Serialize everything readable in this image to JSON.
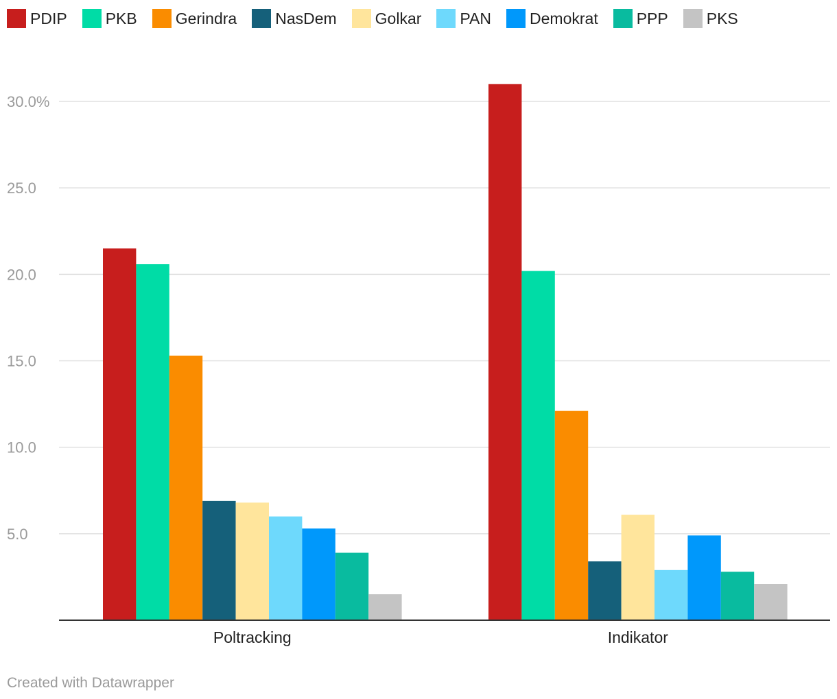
{
  "chart_data": {
    "type": "bar",
    "categories": [
      "Poltracking",
      "Indikator"
    ],
    "series": [
      {
        "name": "PDIP",
        "color": "#c71e1d",
        "values": [
          21.5,
          31.0
        ]
      },
      {
        "name": "PKB",
        "color": "#00dca6",
        "values": [
          20.6,
          20.2
        ]
      },
      {
        "name": "Gerindra",
        "color": "#fa8c00",
        "values": [
          15.3,
          12.1
        ]
      },
      {
        "name": "NasDem",
        "color": "#15607a",
        "values": [
          6.9,
          3.4
        ]
      },
      {
        "name": "Golkar",
        "color": "#ffe59c",
        "values": [
          6.8,
          6.1
        ]
      },
      {
        "name": "PAN",
        "color": "#6ed9fc",
        "values": [
          6.0,
          2.9
        ]
      },
      {
        "name": "Demokrat",
        "color": "#0098fb",
        "values": [
          5.3,
          4.9
        ]
      },
      {
        "name": "PPP",
        "color": "#09bb9f",
        "values": [
          3.9,
          2.8
        ]
      },
      {
        "name": "PKS",
        "color": "#c4c4c4",
        "values": [
          1.5,
          2.1
        ]
      }
    ],
    "yticks": [
      "30.0%",
      "25.0",
      "20.0",
      "15.0",
      "10.0",
      "5.0"
    ],
    "ytick_values": [
      30,
      25,
      20,
      15,
      10,
      5
    ],
    "ylim": [
      0,
      30
    ],
    "grid": true,
    "legend": "top-left",
    "xlabel": "",
    "ylabel": ""
  },
  "footer": "Created with Datawrapper"
}
